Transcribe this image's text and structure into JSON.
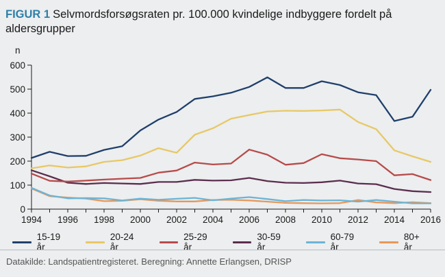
{
  "header": {
    "figure_label": "FIGUR 1",
    "title": "Selvmordsforsøgsraten pr. 100.000 kvindelige indbyggere fordelt på aldersgrupper"
  },
  "footer": {
    "source": "Datakilde: Landspatientregisteret. Beregning: Annette Erlangsen, DRISP"
  },
  "chart_data": {
    "type": "line",
    "title": "Selvmordsforsøgsraten pr. 100.000 kvindelige indbyggere fordelt på aldersgrupper",
    "ylabel": "n",
    "xlabel": "",
    "xlim": [
      1994,
      2016
    ],
    "ylim": [
      0,
      600
    ],
    "x_ticks": [
      1994,
      1996,
      1998,
      2000,
      2002,
      2004,
      2006,
      2008,
      2010,
      2012,
      2014,
      2016
    ],
    "y_ticks": [
      0,
      100,
      200,
      300,
      400,
      500,
      600
    ],
    "grid": false,
    "legend_position": "bottom",
    "x": [
      1994,
      1995,
      1996,
      1997,
      1998,
      1999,
      2000,
      2001,
      2002,
      2003,
      2004,
      2005,
      2006,
      2007,
      2008,
      2009,
      2010,
      2011,
      2012,
      2013,
      2014,
      2015,
      2016
    ],
    "series": [
      {
        "name": "15-19 år",
        "color": "#1f3f6b",
        "values": [
          213,
          239,
          221,
          222,
          247,
          262,
          328,
          373,
          405,
          459,
          470,
          485,
          509,
          549,
          505,
          505,
          533,
          517,
          487,
          475,
          367,
          385,
          497
        ]
      },
      {
        "name": "20-24 år",
        "color": "#e8c865",
        "values": [
          170,
          182,
          173,
          178,
          197,
          204,
          223,
          254,
          235,
          310,
          337,
          377,
          392,
          407,
          410,
          409,
          411,
          415,
          363,
          333,
          245,
          220,
          197
        ]
      },
      {
        "name": "25-29 år",
        "color": "#b84a4a",
        "values": [
          148,
          118,
          115,
          119,
          123,
          127,
          130,
          152,
          161,
          194,
          186,
          190,
          248,
          227,
          185,
          192,
          229,
          212,
          207,
          200,
          141,
          146,
          121
        ]
      },
      {
        "name": "30-59 år",
        "color": "#5b2d4e",
        "values": [
          162,
          137,
          110,
          105,
          109,
          107,
          105,
          113,
          113,
          122,
          119,
          120,
          130,
          117,
          110,
          109,
          112,
          119,
          107,
          104,
          84,
          75,
          71
        ]
      },
      {
        "name": "60-79 år",
        "color": "#6bb4d6",
        "values": [
          89,
          57,
          45,
          46,
          45,
          36,
          44,
          39,
          43,
          47,
          37,
          44,
          50,
          42,
          33,
          38,
          36,
          37,
          31,
          38,
          31,
          24,
          24
        ]
      },
      {
        "name": "80+ år",
        "color": "#e8975a",
        "values": [
          86,
          54,
          48,
          44,
          33,
          35,
          41,
          35,
          32,
          32,
          38,
          39,
          36,
          31,
          26,
          25,
          24,
          25,
          38,
          28,
          25,
          29,
          25
        ]
      }
    ]
  }
}
